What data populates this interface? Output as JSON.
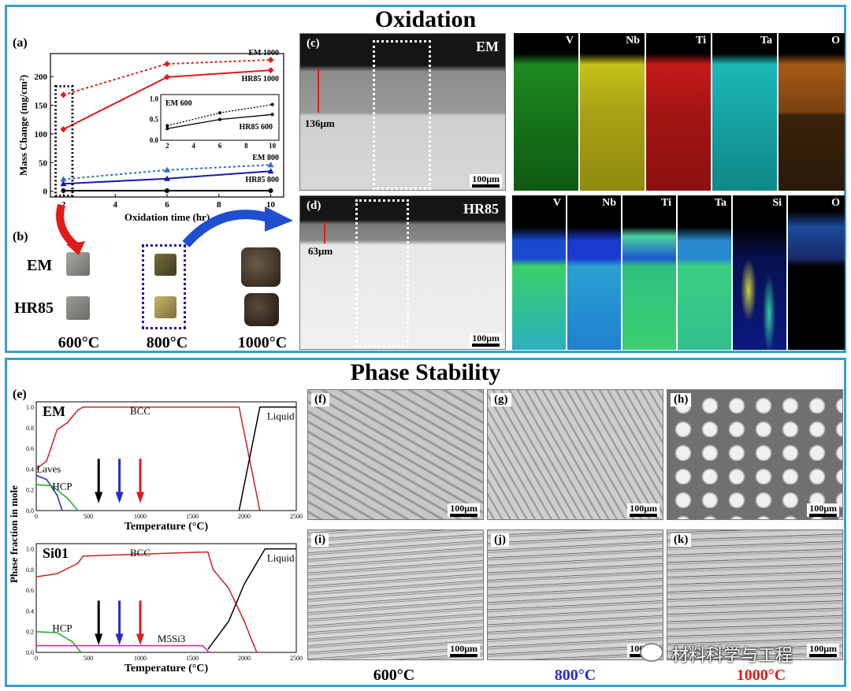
{
  "titles": {
    "oxidation": "Oxidation",
    "phase": "Phase Stability"
  },
  "panel_labels": {
    "a": "(a)",
    "b": "(b)",
    "c": "(c)",
    "d": "(d)",
    "e": "(e)",
    "f": "(f)",
    "g": "(g)",
    "h": "(h)",
    "i": "(i)",
    "j": "(j)",
    "k": "(k)"
  },
  "micrograph_tags": {
    "c": "EM",
    "d": "HR85"
  },
  "thickness": {
    "c": "136μm",
    "d": "63μm"
  },
  "scale_bar": "100μm",
  "maps_c": [
    "V",
    "Nb",
    "Ti",
    "Ta",
    "O"
  ],
  "maps_d": [
    "V",
    "Nb",
    "Ti",
    "Ta",
    "Si",
    "O"
  ],
  "samples": {
    "row_em": "EM",
    "row_hr": "HR85",
    "temps": [
      "600°C",
      "800°C",
      "1000°C"
    ]
  },
  "bottom_temps": [
    "600°C",
    "800°C",
    "1000°C"
  ],
  "watermark": "材料科学与工程",
  "colors": {
    "frame": "#3a9fcf",
    "t600": "#000000",
    "t800": "#2b2bc8",
    "t1000": "#e01b1b"
  },
  "chart_data": [
    {
      "type": "line",
      "xlabel": "Oxidation time (hr)",
      "ylabel": "Mass Change (mg/cm²)",
      "xlim": [
        1.5,
        10.5
      ],
      "ylim": [
        -10,
        240
      ],
      "xticks": [
        2,
        4,
        6,
        8,
        10
      ],
      "yticks": [
        0,
        50,
        100,
        150,
        200
      ],
      "series": [
        {
          "name": "EM 1000",
          "x": [
            2,
            6,
            10
          ],
          "values": [
            168,
            222,
            229
          ],
          "color": "#e01b1b",
          "dash": true,
          "marker": "diamond"
        },
        {
          "name": "HR85 1000",
          "x": [
            2,
            6,
            10
          ],
          "values": [
            108,
            199,
            211
          ],
          "color": "#e01b1b",
          "dash": false,
          "marker": "diamond"
        },
        {
          "name": "EM 800",
          "x": [
            2,
            6,
            10
          ],
          "values": [
            21,
            37,
            46
          ],
          "color": "#2b6fd0",
          "dash": true,
          "marker": "triangle"
        },
        {
          "name": "HR85 800",
          "x": [
            2,
            6,
            10
          ],
          "values": [
            13,
            22,
            35
          ],
          "color": "#1a1aa8",
          "dash": false,
          "marker": "triangle"
        },
        {
          "name": "",
          "x": [
            2,
            6,
            10
          ],
          "values": [
            1,
            1,
            1
          ],
          "color": "#000000",
          "dash": false,
          "marker": "circle"
        }
      ],
      "inset": {
        "xlim": [
          1.5,
          10.5
        ],
        "ylim": [
          0,
          1.1
        ],
        "xticks": [
          2,
          4,
          6,
          8,
          10
        ],
        "yticks": [
          0.0,
          0.5,
          1.0
        ],
        "series": [
          {
            "name": "EM 600",
            "x": [
              2,
              6,
              10
            ],
            "values": [
              0.35,
              0.66,
              0.86
            ],
            "dash": true
          },
          {
            "name": "HR85 600",
            "x": [
              2,
              6,
              10
            ],
            "values": [
              0.28,
              0.5,
              0.62
            ],
            "dash": false
          }
        ]
      }
    },
    {
      "type": "line",
      "title": "EM",
      "xlabel": "Temperature (°C)",
      "ylabel": "Phase fraction in mole",
      "xlim": [
        0,
        2500
      ],
      "ylim": [
        0,
        1.05
      ],
      "xticks": [
        0,
        500,
        1000,
        1500,
        2000,
        2500
      ],
      "yticks": [
        0.0,
        0.2,
        0.4,
        0.6,
        0.8,
        1.0
      ],
      "series": [
        {
          "name": "BCC",
          "x": [
            0,
            100,
            200,
            300,
            400,
            450,
            1950,
            2150
          ],
          "values": [
            0.4,
            0.48,
            0.78,
            0.85,
            0.97,
            1.0,
            1.0,
            0.0
          ],
          "color": "#cc2020"
        },
        {
          "name": "Liquid",
          "x": [
            1950,
            2150,
            2500
          ],
          "values": [
            0.0,
            1.0,
            1.0
          ],
          "color": "#000000"
        },
        {
          "name": "Laves",
          "x": [
            0,
            100,
            200,
            250
          ],
          "values": [
            0.34,
            0.3,
            0.15,
            0.0
          ],
          "color": "#2020cc"
        },
        {
          "name": "HCP",
          "x": [
            0,
            150,
            300,
            400
          ],
          "values": [
            0.25,
            0.24,
            0.12,
            0.0
          ],
          "color": "#20aa20"
        }
      ],
      "markers": [
        600,
        800,
        1000
      ]
    },
    {
      "type": "line",
      "title": "Si01",
      "xlabel": "Temperature (°C)",
      "ylabel": "Phase fraction in mole",
      "xlim": [
        0,
        2500
      ],
      "ylim": [
        0,
        1.05
      ],
      "xticks": [
        0,
        500,
        1000,
        1500,
        2000,
        2500
      ],
      "yticks": [
        0.0,
        0.2,
        0.4,
        0.6,
        0.8,
        1.0
      ],
      "series": [
        {
          "name": "BCC",
          "x": [
            0,
            200,
            400,
            450,
            1650,
            1700,
            1850,
            2000,
            2120
          ],
          "values": [
            0.73,
            0.76,
            0.86,
            0.93,
            0.97,
            0.8,
            0.62,
            0.3,
            0.0
          ],
          "color": "#cc2020"
        },
        {
          "name": "Liquid",
          "x": [
            1650,
            1850,
            2000,
            2200,
            2500
          ],
          "values": [
            0.03,
            0.3,
            0.66,
            1.0,
            1.0
          ],
          "color": "#000000"
        },
        {
          "name": "HCP",
          "x": [
            0,
            200,
            350,
            430
          ],
          "values": [
            0.2,
            0.19,
            0.1,
            0.0
          ],
          "color": "#20aa20"
        },
        {
          "name": "M5Si3",
          "x": [
            0,
            1600,
            1660
          ],
          "values": [
            0.065,
            0.065,
            0.0
          ],
          "color": "#c020c0"
        }
      ],
      "markers": [
        600,
        800,
        1000
      ]
    }
  ]
}
